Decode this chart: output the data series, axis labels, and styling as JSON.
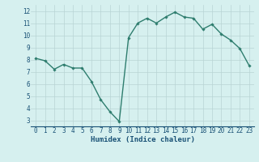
{
  "x": [
    0,
    1,
    2,
    3,
    4,
    5,
    6,
    7,
    8,
    9,
    10,
    11,
    12,
    13,
    14,
    15,
    16,
    17,
    18,
    19,
    20,
    21,
    22,
    23
  ],
  "y": [
    8.1,
    7.9,
    7.2,
    7.6,
    7.3,
    7.3,
    6.2,
    4.7,
    3.7,
    2.9,
    9.8,
    11.0,
    11.4,
    11.0,
    11.5,
    11.9,
    11.5,
    11.4,
    10.5,
    10.9,
    10.1,
    9.6,
    8.9,
    7.5
  ],
  "line_color": "#2e7d6e",
  "marker": "D",
  "marker_size": 1.8,
  "bg_color": "#d6f0ef",
  "grid_color": "#b8d4d4",
  "xlabel": "Humidex (Indice chaleur)",
  "tick_color": "#1a5276",
  "xlim": [
    -0.5,
    23.5
  ],
  "ylim": [
    2.5,
    12.5
  ],
  "yticks": [
    3,
    4,
    5,
    6,
    7,
    8,
    9,
    10,
    11,
    12
  ],
  "xticks": [
    0,
    1,
    2,
    3,
    4,
    5,
    6,
    7,
    8,
    9,
    10,
    11,
    12,
    13,
    14,
    15,
    16,
    17,
    18,
    19,
    20,
    21,
    22,
    23
  ],
  "linewidth": 1.0,
  "tick_fontsize": 5.5,
  "xlabel_fontsize": 6.5
}
